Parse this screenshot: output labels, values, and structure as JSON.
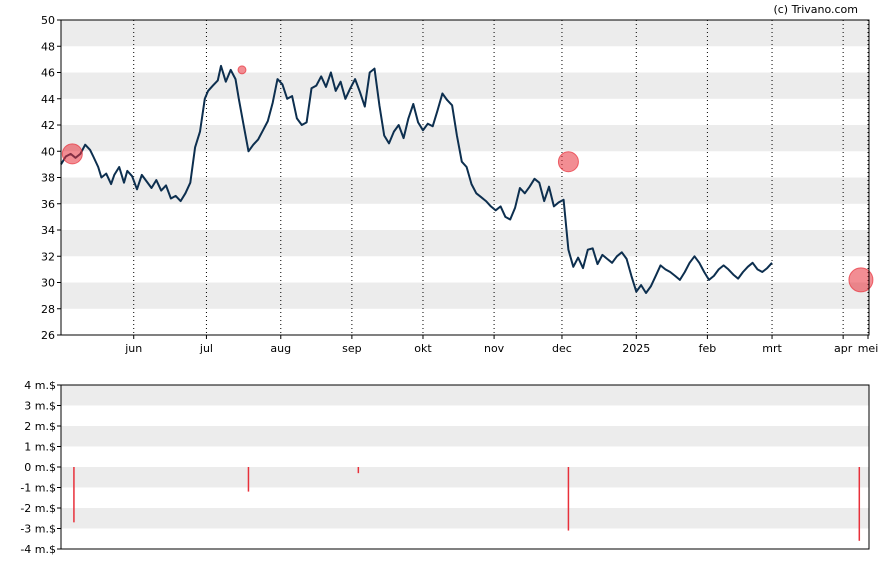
{
  "copyright": "(c) Trivano.com",
  "colors": {
    "line": "#0d2f4f",
    "marker": "#e8303a",
    "volume": "#e8303a",
    "band": "#ececec",
    "frame": "#000000"
  },
  "chart_data": [
    {
      "type": "line",
      "title": "",
      "ylim": [
        26,
        50
      ],
      "yticks": [
        "26",
        "28",
        "30",
        "32",
        "34",
        "36",
        "38",
        "40",
        "42",
        "44",
        "46",
        "48",
        "50"
      ],
      "x_range": [
        0,
        50
      ],
      "months": [
        {
          "label": "jun",
          "x": 4.5
        },
        {
          "label": "jul",
          "x": 9.0
        },
        {
          "label": "aug",
          "x": 13.6
        },
        {
          "label": "sep",
          "x": 18.0
        },
        {
          "label": "okt",
          "x": 22.4
        },
        {
          "label": "nov",
          "x": 26.8
        },
        {
          "label": "dec",
          "x": 31.0
        },
        {
          "label": "2025",
          "x": 35.6
        },
        {
          "label": "feb",
          "x": 40.0
        },
        {
          "label": "mrt",
          "x": 44.0
        },
        {
          "label": "apr",
          "x": 48.4
        },
        {
          "label": "mei",
          "x": 52.8
        }
      ],
      "series": [
        {
          "points": [
            [
              0.0,
              39.0
            ],
            [
              0.3,
              39.6
            ],
            [
              0.6,
              39.8
            ],
            [
              0.9,
              39.5
            ],
            [
              1.2,
              39.8
            ],
            [
              1.5,
              40.5
            ],
            [
              1.8,
              40.1
            ],
            [
              2.0,
              39.6
            ],
            [
              2.3,
              38.8
            ],
            [
              2.5,
              38.0
            ],
            [
              2.8,
              38.3
            ],
            [
              3.1,
              37.5
            ],
            [
              3.3,
              38.2
            ],
            [
              3.6,
              38.8
            ],
            [
              3.9,
              37.6
            ],
            [
              4.1,
              38.5
            ],
            [
              4.4,
              38.1
            ],
            [
              4.7,
              37.1
            ],
            [
              5.0,
              38.2
            ],
            [
              5.3,
              37.7
            ],
            [
              5.6,
              37.2
            ],
            [
              5.9,
              37.8
            ],
            [
              6.2,
              37.0
            ],
            [
              6.5,
              37.4
            ],
            [
              6.8,
              36.4
            ],
            [
              7.1,
              36.6
            ],
            [
              7.4,
              36.2
            ],
            [
              7.7,
              36.8
            ],
            [
              8.0,
              37.6
            ],
            [
              8.3,
              40.3
            ],
            [
              8.6,
              41.5
            ],
            [
              8.9,
              44.0
            ],
            [
              9.1,
              44.6
            ],
            [
              9.4,
              45.0
            ],
            [
              9.7,
              45.4
            ],
            [
              9.9,
              46.5
            ],
            [
              10.2,
              45.3
            ],
            [
              10.5,
              46.2
            ],
            [
              10.8,
              45.5
            ],
            [
              11.0,
              44.0
            ],
            [
              11.3,
              42.0
            ],
            [
              11.6,
              40.0
            ],
            [
              11.9,
              40.5
            ],
            [
              12.2,
              40.9
            ],
            [
              12.5,
              41.6
            ],
            [
              12.8,
              42.3
            ],
            [
              13.1,
              43.7
            ],
            [
              13.4,
              45.5
            ],
            [
              13.7,
              45.1
            ],
            [
              14.0,
              44.0
            ],
            [
              14.3,
              44.2
            ],
            [
              14.6,
              42.5
            ],
            [
              14.9,
              42.0
            ],
            [
              15.2,
              42.2
            ],
            [
              15.5,
              44.8
            ],
            [
              15.8,
              45.0
            ],
            [
              16.1,
              45.7
            ],
            [
              16.4,
              44.9
            ],
            [
              16.7,
              46.0
            ],
            [
              17.0,
              44.6
            ],
            [
              17.3,
              45.3
            ],
            [
              17.6,
              44.0
            ],
            [
              17.9,
              44.8
            ],
            [
              18.2,
              45.5
            ],
            [
              18.5,
              44.5
            ],
            [
              18.8,
              43.4
            ],
            [
              19.1,
              46.0
            ],
            [
              19.4,
              46.3
            ],
            [
              19.7,
              43.5
            ],
            [
              20.0,
              41.2
            ],
            [
              20.3,
              40.6
            ],
            [
              20.6,
              41.5
            ],
            [
              20.9,
              42.0
            ],
            [
              21.2,
              41.0
            ],
            [
              21.5,
              42.5
            ],
            [
              21.8,
              43.6
            ],
            [
              22.1,
              42.2
            ],
            [
              22.4,
              41.6
            ],
            [
              22.7,
              42.1
            ],
            [
              23.0,
              41.9
            ],
            [
              23.3,
              43.1
            ],
            [
              23.6,
              44.4
            ],
            [
              23.9,
              43.9
            ],
            [
              24.2,
              43.5
            ],
            [
              24.5,
              41.2
            ],
            [
              24.8,
              39.2
            ],
            [
              25.1,
              38.8
            ],
            [
              25.4,
              37.5
            ],
            [
              25.7,
              36.8
            ],
            [
              26.0,
              36.5
            ],
            [
              26.3,
              36.2
            ],
            [
              26.6,
              35.8
            ],
            [
              26.9,
              35.5
            ],
            [
              27.2,
              35.8
            ],
            [
              27.5,
              35.0
            ],
            [
              27.8,
              34.8
            ],
            [
              28.1,
              35.7
            ],
            [
              28.4,
              37.2
            ],
            [
              28.7,
              36.8
            ],
            [
              29.0,
              37.3
            ],
            [
              29.3,
              37.9
            ],
            [
              29.6,
              37.6
            ],
            [
              29.9,
              36.2
            ],
            [
              30.2,
              37.3
            ],
            [
              30.5,
              35.8
            ],
            [
              30.8,
              36.1
            ],
            [
              31.1,
              36.3
            ],
            [
              31.4,
              32.5
            ],
            [
              31.7,
              31.2
            ],
            [
              32.0,
              31.9
            ],
            [
              32.3,
              31.1
            ],
            [
              32.6,
              32.5
            ],
            [
              32.9,
              32.6
            ],
            [
              33.2,
              31.4
            ],
            [
              33.5,
              32.1
            ],
            [
              33.8,
              31.8
            ],
            [
              34.1,
              31.5
            ],
            [
              34.4,
              32.0
            ],
            [
              34.7,
              32.3
            ],
            [
              35.0,
              31.8
            ],
            [
              35.3,
              30.5
            ],
            [
              35.6,
              29.3
            ],
            [
              35.9,
              29.8
            ],
            [
              36.2,
              29.2
            ],
            [
              36.5,
              29.7
            ],
            [
              36.8,
              30.5
            ],
            [
              37.1,
              31.3
            ],
            [
              37.4,
              31.0
            ],
            [
              37.7,
              30.8
            ],
            [
              38.0,
              30.5
            ],
            [
              38.3,
              30.2
            ],
            [
              38.6,
              30.8
            ],
            [
              38.9,
              31.5
            ],
            [
              39.2,
              32.0
            ],
            [
              39.5,
              31.5
            ],
            [
              39.8,
              30.8
            ],
            [
              40.1,
              30.2
            ],
            [
              40.4,
              30.5
            ],
            [
              40.7,
              31.0
            ],
            [
              41.0,
              31.3
            ],
            [
              41.3,
              31.0
            ],
            [
              41.6,
              30.6
            ],
            [
              41.9,
              30.3
            ],
            [
              42.2,
              30.8
            ],
            [
              42.5,
              31.2
            ],
            [
              42.8,
              31.5
            ],
            [
              43.1,
              31.0
            ],
            [
              43.4,
              30.8
            ],
            [
              43.7,
              31.1
            ],
            [
              44.0,
              31.5
            ]
          ]
        }
      ],
      "markers": [
        {
          "x": 0.7,
          "y": 39.8,
          "size": "medium"
        },
        {
          "x": 11.2,
          "y": 46.2,
          "size": "small"
        },
        {
          "x": 31.4,
          "y": 39.2,
          "size": "medium"
        },
        {
          "x": 49.5,
          "y": 30.2,
          "size": "large"
        }
      ]
    },
    {
      "type": "bar",
      "ylim": [
        -4,
        4
      ],
      "yticks": [
        "-4 m.$",
        "-3 m.$",
        "-2 m.$",
        "-1 m.$",
        "0 m.$",
        "1 m.$",
        "2 m.$",
        "3 m.$",
        "4 m.$"
      ],
      "x_range": [
        0,
        50
      ],
      "bars": [
        {
          "x": 0.8,
          "value": -2.7
        },
        {
          "x": 11.6,
          "value": -1.2
        },
        {
          "x": 18.4,
          "value": -0.3
        },
        {
          "x": 31.4,
          "value": -3.1
        },
        {
          "x": 49.4,
          "value": -3.6
        }
      ]
    }
  ]
}
